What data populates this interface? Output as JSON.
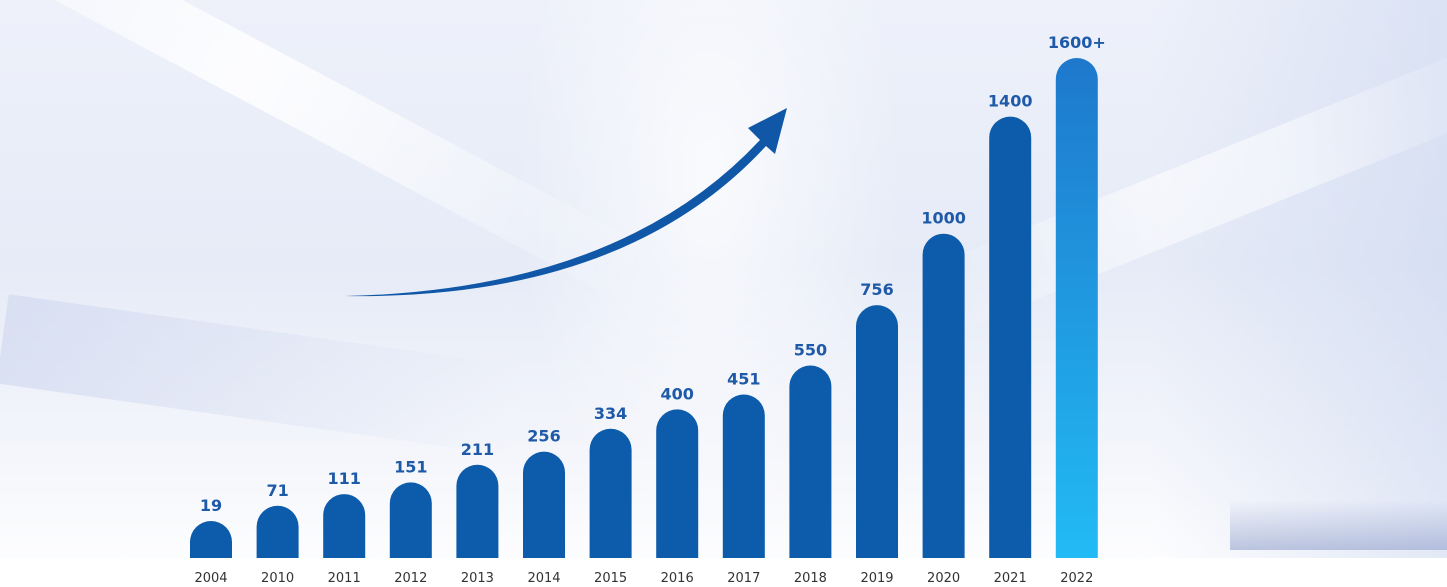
{
  "chart_data": {
    "type": "bar",
    "categories": [
      "2004",
      "2010",
      "2011",
      "2012",
      "2013",
      "2014",
      "2015",
      "2016",
      "2017",
      "2018",
      "2019",
      "2020",
      "2021",
      "2022"
    ],
    "values": [
      19,
      71,
      111,
      151,
      211,
      256,
      334,
      400,
      451,
      550,
      756,
      1000,
      1400,
      1600
    ],
    "value_labels": [
      "19",
      "71",
      "111",
      "151",
      "211",
      "256",
      "334",
      "400",
      "451",
      "550",
      "756",
      "1000",
      "1400",
      "1600+"
    ],
    "title": "",
    "xlabel": "",
    "ylabel": "",
    "grid": false,
    "legend": "none",
    "highlight_index": 13,
    "colors": {
      "bar": "#0d5bab",
      "highlight_top": "#1e78cc",
      "highlight_bottom": "#22bbf5",
      "arrow": "#1157a7",
      "label": "#1e5aa8"
    }
  }
}
